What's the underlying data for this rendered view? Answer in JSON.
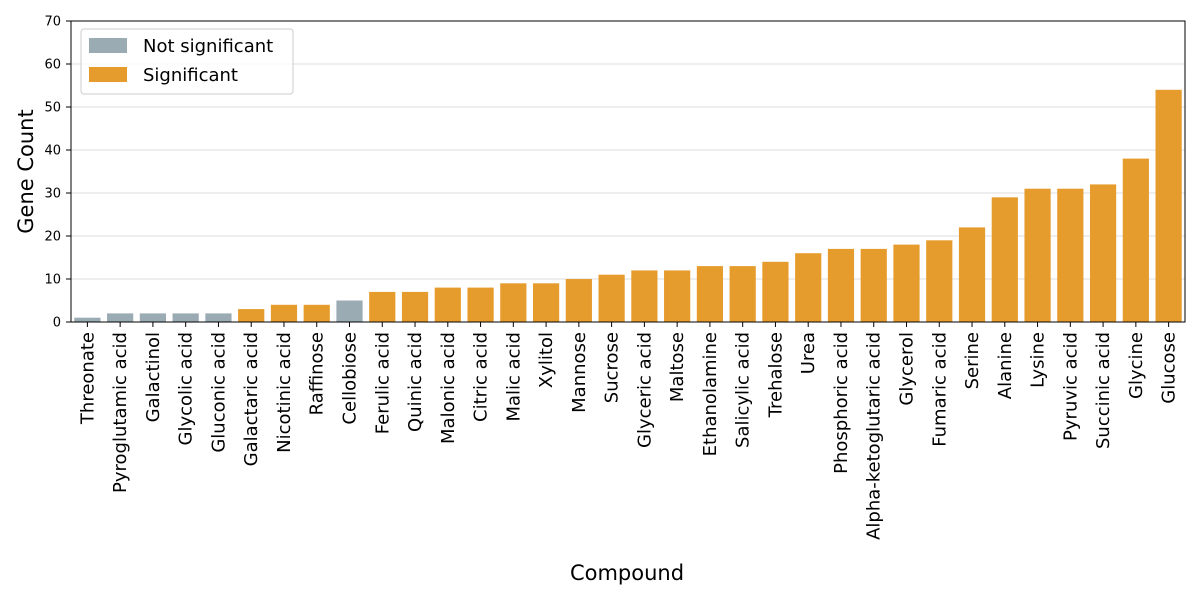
{
  "chart_data": {
    "type": "bar",
    "title": "",
    "xlabel": "Compound",
    "ylabel": "Gene Count",
    "ylim": [
      0,
      70
    ],
    "yticks": [
      0,
      10,
      20,
      30,
      40,
      50,
      60,
      70
    ],
    "grid": "horizontal",
    "legend_position": "top-left",
    "legend": [
      {
        "label": "Not significant",
        "color": "#9aabb3"
      },
      {
        "label": "Significant",
        "color": "#e69c2d"
      }
    ],
    "categories": [
      "Threonate",
      "Pyroglutamic acid",
      "Galactinol",
      "Glycolic acid",
      "Gluconic acid",
      "Galactaric acid",
      "Nicotinic acid",
      "Raffinose",
      "Cellobiose",
      "Ferulic acid",
      "Quinic acid",
      "Malonic acid",
      "Citric acid",
      "Malic acid",
      "Xylitol",
      "Mannose",
      "Sucrose",
      "Glyceric acid",
      "Maltose",
      "Ethanolamine",
      "Salicylic acid",
      "Trehalose",
      "Urea",
      "Phosphoric acid",
      "Alpha-ketoglutaric acid",
      "Glycerol",
      "Fumaric acid",
      "Serine",
      "Alanine",
      "Lysine",
      "Pyruvic acid",
      "Succinic acid",
      "Glycine",
      "Glucose"
    ],
    "values": [
      1,
      2,
      2,
      2,
      2,
      3,
      4,
      4,
      5,
      7,
      7,
      8,
      8,
      9,
      9,
      10,
      11,
      12,
      12,
      13,
      13,
      14,
      16,
      17,
      17,
      18,
      19,
      22,
      29,
      31,
      31,
      32,
      38,
      54
    ],
    "significance": [
      "Not significant",
      "Not significant",
      "Not significant",
      "Not significant",
      "Not significant",
      "Significant",
      "Significant",
      "Significant",
      "Not significant",
      "Significant",
      "Significant",
      "Significant",
      "Significant",
      "Significant",
      "Significant",
      "Significant",
      "Significant",
      "Significant",
      "Significant",
      "Significant",
      "Significant",
      "Significant",
      "Significant",
      "Significant",
      "Significant",
      "Significant",
      "Significant",
      "Significant",
      "Significant",
      "Significant",
      "Significant",
      "Significant",
      "Significant",
      "Significant"
    ]
  }
}
